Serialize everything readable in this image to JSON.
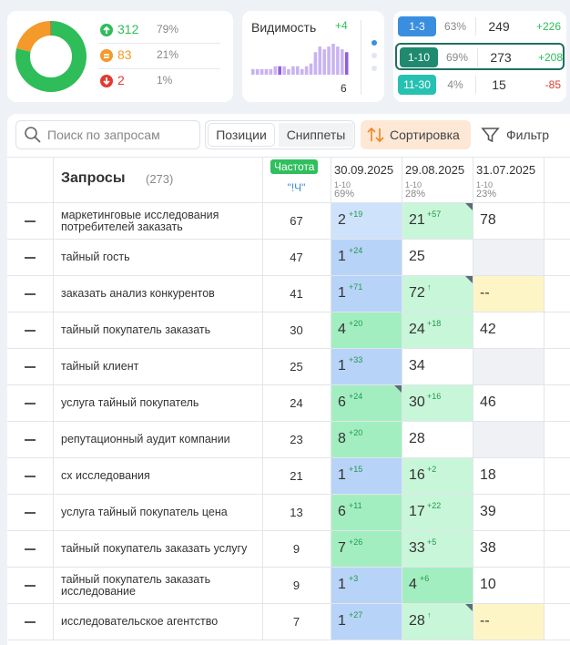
{
  "summary": {
    "rows": [
      {
        "count": 312,
        "share": "79%",
        "color": "#2ebd59"
      },
      {
        "count": 83,
        "share": "21%",
        "color": "#f39a2b"
      },
      {
        "count": 2,
        "share": "1%",
        "color": "#e5392f"
      }
    ]
  },
  "visibility": {
    "title": "Видимость",
    "change": "+4",
    "value": 6,
    "bars": [
      2,
      2,
      2,
      2,
      2,
      3,
      3,
      3,
      2,
      3,
      3,
      2,
      3,
      4,
      8,
      10,
      9,
      10,
      11,
      10,
      9,
      8
    ],
    "bar_colors": [
      "#c9b3f0",
      "#c9b3f0",
      "#c9b3f0",
      "#c9b3f0",
      "#c9b3f0",
      "#c9b3f0",
      "#8e5ee0",
      "#c9b3f0",
      "#c9b3f0",
      "#c9b3f0",
      "#c9b3f0",
      "#c9b3f0",
      "#c9b3f0",
      "#c9b3f0",
      "#c9b3f0",
      "#c9b3f0",
      "#c9b3f0",
      "#c9b3f0",
      "#c9b3f0",
      "#c9b3f0",
      "#c9b3f0",
      "#8e5ee0"
    ]
  },
  "groups": [
    {
      "range": "1-3",
      "share": "63%",
      "count": 249,
      "delta": "+226",
      "color": "#3a8ee0"
    },
    {
      "range": "1-10",
      "share": "69%",
      "count": 273,
      "delta": "+208",
      "color": "#1f8a6e"
    },
    {
      "range": "11-30",
      "share": "4%",
      "count": 15,
      "delta": "-85",
      "color": "#27c1b2"
    }
  ],
  "toolbar": {
    "search": "Поиск по запросам",
    "tabs": [
      "Позиции",
      "Сниппеты"
    ],
    "sort": "Сортировка",
    "filter": "Фильтр"
  },
  "table": {
    "query_header": "Запросы",
    "query_count": "(273)",
    "freq_header": "Частота",
    "freq_sub": "\"!Ч\"",
    "dates": [
      {
        "date": "30.09.2025",
        "range": "1-10",
        "share": "69%"
      },
      {
        "date": "29.08.2025",
        "range": "1-10",
        "share": "28%"
      },
      {
        "date": "31.07.2025",
        "range": "1-10",
        "share": "23%"
      }
    ],
    "rows": [
      {
        "query": "маркетинговые исследования потребителей заказать",
        "freq": 67,
        "cells": [
          {
            "pos": 2,
            "delta": "+19",
            "bg": "#cfe2fb"
          },
          {
            "pos": 21,
            "delta": "+57",
            "bg": "#c8f6d9",
            "corner": true
          },
          {
            "pos": 78,
            "bg": "#ffffff"
          }
        ]
      },
      {
        "query": "тайный гость",
        "freq": 47,
        "cells": [
          {
            "pos": 1,
            "delta": "+24",
            "bg": "#b8d3f8"
          },
          {
            "pos": 25,
            "bg": "#ffffff"
          },
          {
            "bg": "#eff1f4"
          }
        ]
      },
      {
        "query": "заказать анализ конкурентов",
        "freq": 41,
        "cells": [
          {
            "pos": 1,
            "delta": "+71",
            "bg": "#b8d3f8"
          },
          {
            "pos": 72,
            "delta": "↑",
            "bg": "#c8f6d9",
            "corner": true
          },
          {
            "pos": "--",
            "bg": "#fdf5c6"
          }
        ]
      },
      {
        "query": "тайный покупатель заказать",
        "freq": 30,
        "cells": [
          {
            "pos": 4,
            "delta": "+20",
            "bg": "#a3eec1"
          },
          {
            "pos": 24,
            "delta": "+18",
            "bg": "#c8f6d9"
          },
          {
            "pos": 42,
            "bg": "#ffffff"
          }
        ]
      },
      {
        "query": "тайный клиент",
        "freq": 25,
        "cells": [
          {
            "pos": 1,
            "delta": "+33",
            "bg": "#b8d3f8"
          },
          {
            "pos": 34,
            "bg": "#ffffff"
          },
          {
            "bg": "#eff1f4"
          }
        ]
      },
      {
        "query": "услуга тайный покупатель",
        "freq": 24,
        "cells": [
          {
            "pos": 6,
            "delta": "+24",
            "bg": "#a3eec1",
            "corner": true
          },
          {
            "pos": 30,
            "delta": "+16",
            "bg": "#c8f6d9"
          },
          {
            "pos": 46,
            "bg": "#ffffff"
          }
        ]
      },
      {
        "query": "репутационный аудит компании",
        "freq": 23,
        "cells": [
          {
            "pos": 8,
            "delta": "+20",
            "bg": "#a3eec1"
          },
          {
            "pos": 28,
            "bg": "#ffffff"
          },
          {
            "bg": "#eff1f4"
          }
        ]
      },
      {
        "query": "сх исследования",
        "freq": 21,
        "cells": [
          {
            "pos": 1,
            "delta": "+15",
            "bg": "#b8d3f8"
          },
          {
            "pos": 16,
            "delta": "+2",
            "bg": "#c8f6d9"
          },
          {
            "pos": 18,
            "bg": "#ffffff"
          }
        ]
      },
      {
        "query": "услуга тайный покупатель цена",
        "freq": 13,
        "cells": [
          {
            "pos": 6,
            "delta": "+11",
            "bg": "#a3eec1"
          },
          {
            "pos": 17,
            "delta": "+22",
            "bg": "#c8f6d9"
          },
          {
            "pos": 39,
            "bg": "#ffffff"
          }
        ]
      },
      {
        "query": "тайный покупатель заказать услугу",
        "freq": 9,
        "cells": [
          {
            "pos": 7,
            "delta": "+26",
            "bg": "#a3eec1"
          },
          {
            "pos": 33,
            "delta": "+5",
            "bg": "#c8f6d9"
          },
          {
            "pos": 38,
            "bg": "#ffffff"
          }
        ]
      },
      {
        "query": "тайный покупатель заказать исследование",
        "freq": 9,
        "cells": [
          {
            "pos": 1,
            "delta": "+3",
            "bg": "#b8d3f8"
          },
          {
            "pos": 4,
            "delta": "+6",
            "bg": "#a3eec1"
          },
          {
            "pos": 10,
            "bg": "#ffffff"
          }
        ]
      },
      {
        "query": "исследовательское агентство",
        "freq": 7,
        "cells": [
          {
            "pos": 1,
            "delta": "+27",
            "bg": "#b8d3f8"
          },
          {
            "pos": 28,
            "delta": "↑",
            "bg": "#c8f6d9",
            "corner": true
          },
          {
            "pos": "--",
            "bg": "#fdf5c6"
          }
        ]
      }
    ]
  }
}
